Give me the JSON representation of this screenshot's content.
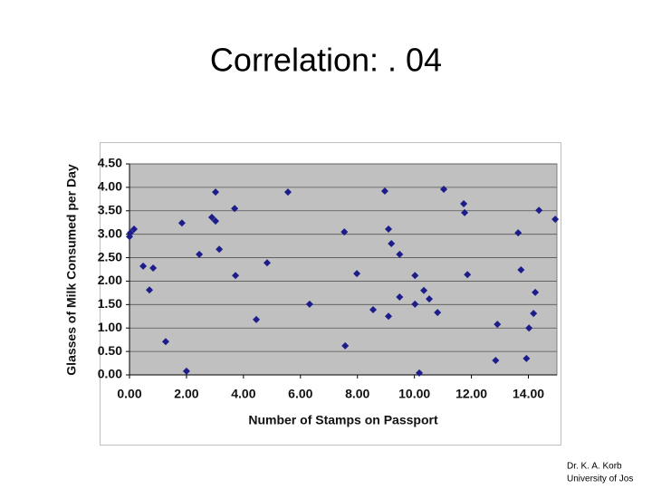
{
  "slide": {
    "title": "Correlation: . 04",
    "footer": [
      "Dr. K. A. Korb",
      "University of Jos"
    ]
  },
  "chart_data": {
    "type": "scatter",
    "x_label": "Number of Stamps on Passport",
    "y_label": "Glasses of Milk Consumed per Day",
    "color": "#1c1c8a",
    "marker": "diamond",
    "grid": true,
    "plot_background": "#c0c0c0",
    "x": [
      0.0,
      0.03,
      0.16,
      0.48,
      0.7,
      0.83,
      1.27,
      1.84,
      2.0,
      2.45,
      2.89,
      3.02,
      3.02,
      3.15,
      3.69,
      3.72,
      4.45,
      4.83,
      5.56,
      6.32,
      7.54,
      7.57,
      7.98,
      8.55,
      8.96,
      9.09,
      9.09,
      9.19,
      9.48,
      9.48,
      10.02,
      10.02,
      10.17,
      10.33,
      10.52,
      10.81,
      11.03,
      11.73,
      11.76,
      11.86,
      12.85,
      12.91,
      13.64,
      13.74,
      13.93,
      14.02,
      14.18,
      14.24,
      14.37,
      14.94
    ],
    "values": [
      2.95,
      3.03,
      3.11,
      2.32,
      1.81,
      2.28,
      0.71,
      3.24,
      0.08,
      2.57,
      3.36,
      3.9,
      3.28,
      2.68,
      3.55,
      2.12,
      1.18,
      2.39,
      3.9,
      1.51,
      3.05,
      0.62,
      2.16,
      1.39,
      3.92,
      3.11,
      1.25,
      2.8,
      2.57,
      1.66,
      2.12,
      1.51,
      0.04,
      1.8,
      1.62,
      1.33,
      3.96,
      3.65,
      3.46,
      2.14,
      0.31,
      1.08,
      3.03,
      2.24,
      0.35,
      1.0,
      1.31,
      1.76,
      3.51,
      3.32
    ],
    "xlim": [
      0,
      15
    ],
    "xticks": [
      {
        "value": 0,
        "label": "0.00"
      },
      {
        "value": 2,
        "label": "2.00"
      },
      {
        "value": 4,
        "label": "4.00"
      },
      {
        "value": 6,
        "label": "6.00"
      },
      {
        "value": 8,
        "label": "8.00"
      },
      {
        "value": 10,
        "label": "10.00"
      },
      {
        "value": 12,
        "label": "12.00"
      },
      {
        "value": 14,
        "label": "14.00"
      }
    ],
    "ylim": [
      0,
      4.5
    ],
    "yticks": [
      {
        "value": 0,
        "label": "0.00"
      },
      {
        "value": 0.5,
        "label": "0.50"
      },
      {
        "value": 1,
        "label": "1.00"
      },
      {
        "value": 1.5,
        "label": "1.50"
      },
      {
        "value": 2,
        "label": "2.00"
      },
      {
        "value": 2.5,
        "label": "2.50"
      },
      {
        "value": 3,
        "label": "3.00"
      },
      {
        "value": 3.5,
        "label": "3.50"
      },
      {
        "value": 4,
        "label": "4.00"
      },
      {
        "value": 4.5,
        "label": "4.50"
      }
    ]
  }
}
